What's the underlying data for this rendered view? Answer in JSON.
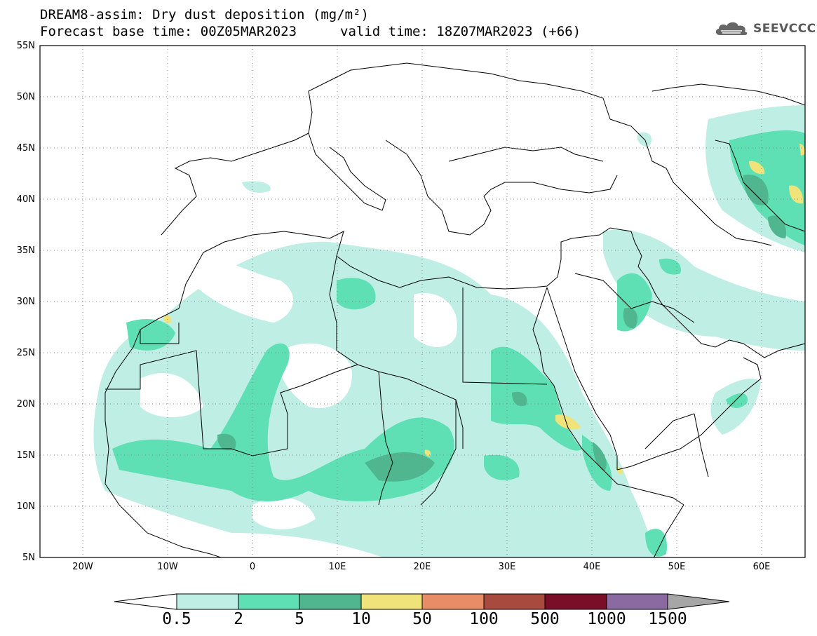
{
  "title": {
    "line1": "DREAM8-assim: Dry dust deposition (mg/m²)",
    "line2": "Forecast base time: 00Z05MAR2023",
    "valid": "valid time: 18Z07MAR2023 (+66)"
  },
  "logo": {
    "icon": "cloud-icon",
    "text": "SEEVCCC"
  },
  "axes": {
    "lat_labels": [
      "55N",
      "50N",
      "45N",
      "40N",
      "35N",
      "30N",
      "25N",
      "20N",
      "15N",
      "10N",
      "5N"
    ],
    "lon_labels": [
      "20W",
      "10W",
      "0",
      "10E",
      "20E",
      "30E",
      "40E",
      "50E",
      "60E"
    ],
    "lat_range": [
      5,
      55
    ],
    "lon_range": [
      -25,
      65
    ],
    "grid": "dotted"
  },
  "colorbar": {
    "labels": [
      "0.5",
      "2",
      "5",
      "10",
      "50",
      "100",
      "500",
      "1000",
      "1500"
    ],
    "colors": [
      "#bfeee4",
      "#5ee0b4",
      "#4fb690",
      "#f0e37a",
      "#e88c68",
      "#a84a3e",
      "#7a0d28",
      "#8a6aa0",
      "#a6a6a6"
    ]
  }
}
